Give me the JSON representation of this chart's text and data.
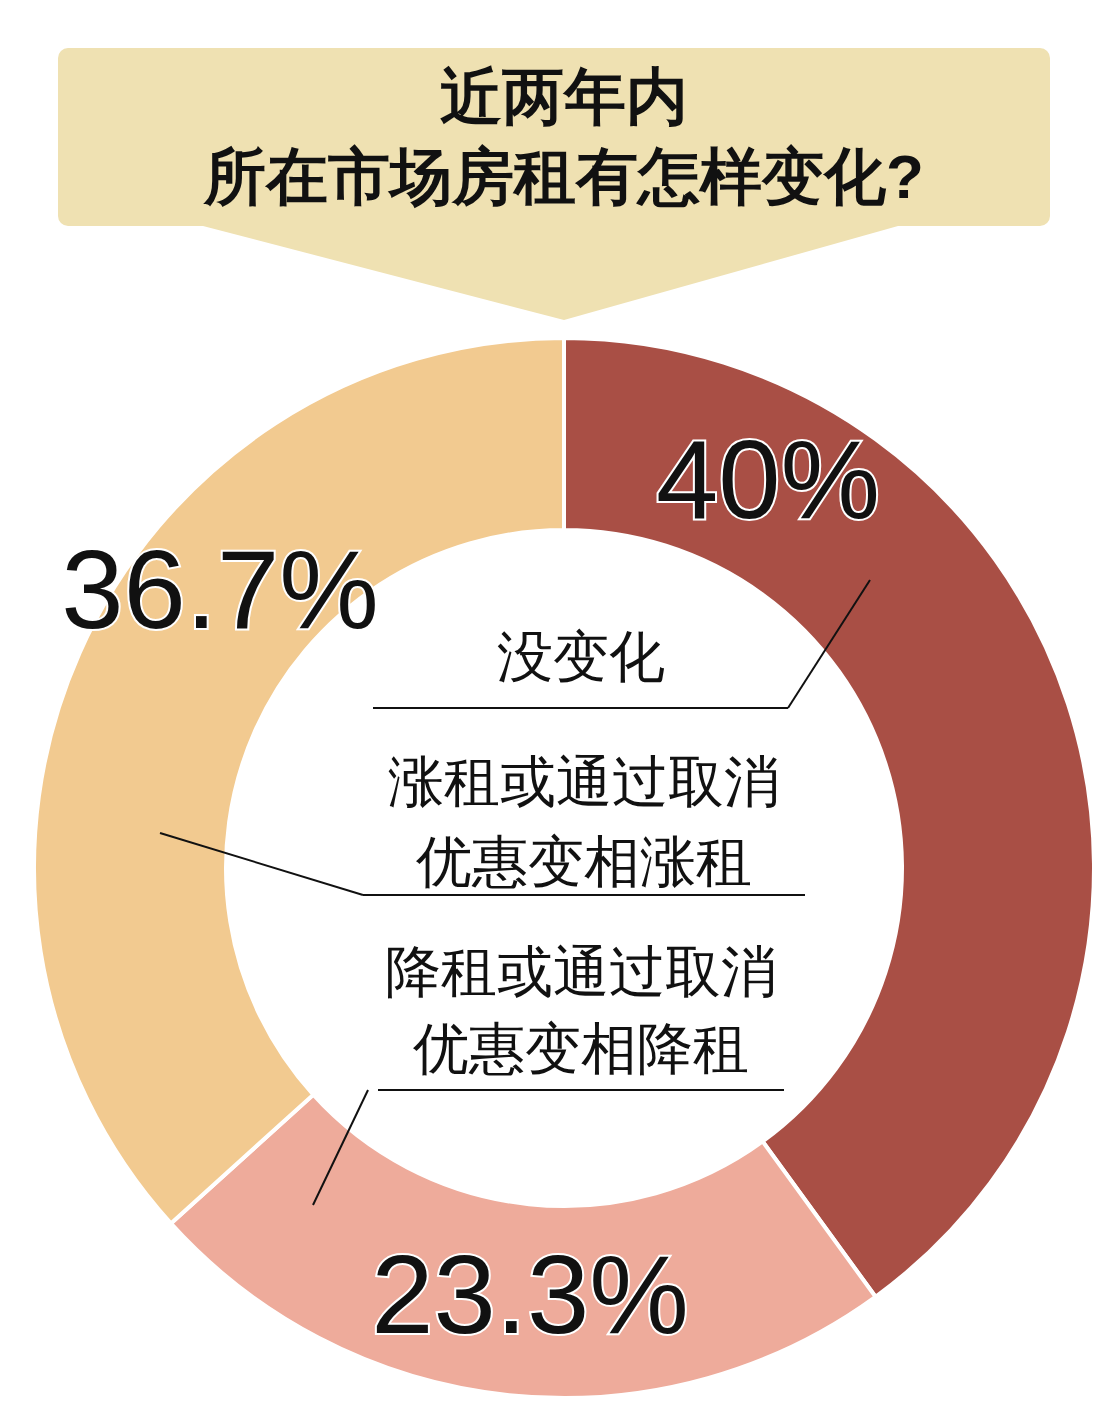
{
  "chart_data": {
    "type": "donut",
    "title": "近两年内",
    "subtitle": "所在市场房租有怎样变化?",
    "categories": [
      "没变化",
      "降租或通过取消优惠变相降租",
      "涨租或通过取消优惠变相涨租"
    ],
    "values": [
      40,
      23.3,
      36.7
    ],
    "colors": [
      "#a94f45",
      "#eeab9b",
      "#f2ca90"
    ],
    "value_labels": [
      "40%",
      "23.3%",
      "36.7%"
    ]
  }
}
